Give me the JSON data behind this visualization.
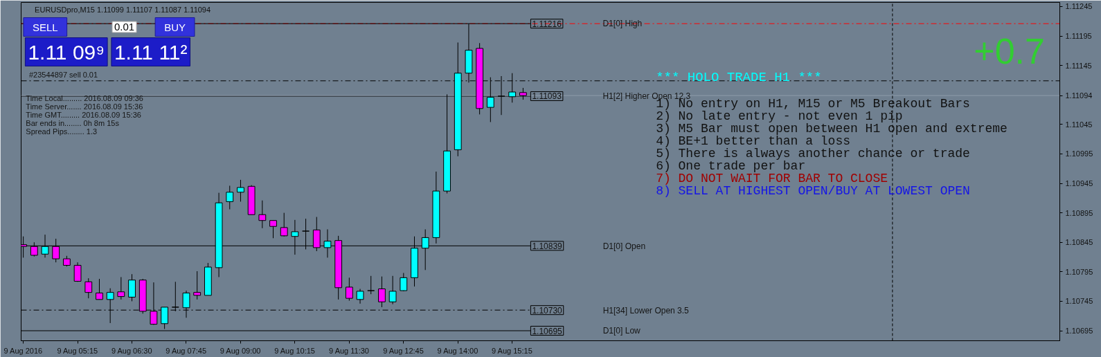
{
  "chart_data": {
    "type": "candlestick",
    "title": "EURUSDpro,M15 1.11099 1.11107 1.11087 1.11094",
    "x": [
      "2016-08-09T04:00",
      "2016-08-09T04:15",
      "2016-08-09T04:30",
      "2016-08-09T04:45",
      "2016-08-09T05:00",
      "2016-08-09T05:15",
      "2016-08-09T05:30",
      "2016-08-09T05:45",
      "2016-08-09T06:00",
      "2016-08-09T06:15",
      "2016-08-09T06:30",
      "2016-08-09T06:45",
      "2016-08-09T07:00",
      "2016-08-09T07:15",
      "2016-08-09T07:30",
      "2016-08-09T07:45",
      "2016-08-09T08:00",
      "2016-08-09T08:15",
      "2016-08-09T08:30",
      "2016-08-09T08:45",
      "2016-08-09T09:00",
      "2016-08-09T09:15",
      "2016-08-09T09:30",
      "2016-08-09T09:45",
      "2016-08-09T10:00",
      "2016-08-09T10:15",
      "2016-08-09T10:30",
      "2016-08-09T10:45",
      "2016-08-09T11:00",
      "2016-08-09T11:15",
      "2016-08-09T11:30",
      "2016-08-09T11:45",
      "2016-08-09T12:00",
      "2016-08-09T12:15",
      "2016-08-09T12:30",
      "2016-08-09T12:45",
      "2016-08-09T13:00",
      "2016-08-09T13:15",
      "2016-08-09T13:30",
      "2016-08-09T13:45",
      "2016-08-09T14:00",
      "2016-08-09T14:15",
      "2016-08-09T14:30",
      "2016-08-09T14:45",
      "2016-08-09T15:00",
      "2016-08-09T15:15",
      "2016-08-09T15:30"
    ],
    "ohlc": [
      [
        1.10841,
        1.10855,
        1.10819,
        1.10838
      ],
      [
        1.10838,
        1.10845,
        1.10821,
        1.10823
      ],
      [
        1.10825,
        1.10858,
        1.10819,
        1.10838
      ],
      [
        1.10838,
        1.10851,
        1.10811,
        1.10817
      ],
      [
        1.10817,
        1.10822,
        1.10804,
        1.10806
      ],
      [
        1.10806,
        1.10811,
        1.10778,
        1.10779
      ],
      [
        1.10778,
        1.10784,
        1.1075,
        1.1076
      ],
      [
        1.10759,
        1.10783,
        1.10748,
        1.10748
      ],
      [
        1.10748,
        1.10767,
        1.10708,
        1.1076
      ],
      [
        1.10761,
        1.10786,
        1.10748,
        1.10753
      ],
      [
        1.10752,
        1.10791,
        1.10745,
        1.10781
      ],
      [
        1.10781,
        1.10783,
        1.10724,
        1.10728
      ],
      [
        1.10728,
        1.10777,
        1.10705,
        1.10706
      ],
      [
        1.10707,
        1.10735,
        1.10698,
        1.10735
      ],
      [
        1.10735,
        1.10778,
        1.10728,
        1.10735
      ],
      [
        1.10734,
        1.10763,
        1.10717,
        1.10759
      ],
      [
        1.1076,
        1.10796,
        1.10748,
        1.10755
      ],
      [
        1.10755,
        1.1081,
        1.10755,
        1.10803
      ],
      [
        1.10802,
        1.10929,
        1.10786,
        1.10912
      ],
      [
        1.10914,
        1.10941,
        1.10901,
        1.1093
      ],
      [
        1.1093,
        1.10951,
        1.10914,
        1.10938
      ],
      [
        1.1094,
        1.10942,
        1.10892,
        1.10892
      ],
      [
        1.10892,
        1.10916,
        1.10869,
        1.10882
      ],
      [
        1.10882,
        1.10882,
        1.10852,
        1.10872
      ],
      [
        1.1087,
        1.10895,
        1.10855,
        1.10856
      ],
      [
        1.10855,
        1.10883,
        1.10824,
        1.10863
      ],
      [
        1.10864,
        1.10885,
        1.10833,
        1.10864
      ],
      [
        1.10866,
        1.10888,
        1.1083,
        1.10836
      ],
      [
        1.10836,
        1.10867,
        1.10819,
        1.10847
      ],
      [
        1.10848,
        1.10856,
        1.10748,
        1.10768
      ],
      [
        1.10769,
        1.10785,
        1.10746,
        1.1075
      ],
      [
        1.10748,
        1.10766,
        1.10741,
        1.10762
      ],
      [
        1.10763,
        1.10788,
        1.10757,
        1.10763
      ],
      [
        1.10766,
        1.10787,
        1.10735,
        1.10744
      ],
      [
        1.10744,
        1.10788,
        1.1074,
        1.10762
      ],
      [
        1.10763,
        1.10793,
        1.10762,
        1.10785
      ],
      [
        1.10785,
        1.10855,
        1.1077,
        1.10835
      ],
      [
        1.10835,
        1.10867,
        1.10798,
        1.10853
      ],
      [
        1.10853,
        1.10965,
        1.10843,
        1.10932
      ],
      [
        1.10932,
        1.11096,
        1.10928,
        1.11
      ],
      [
        1.11002,
        1.11184,
        1.10991,
        1.11132
      ],
      [
        1.11132,
        1.11216,
        1.11116,
        1.11171
      ],
      [
        1.11174,
        1.11183,
        1.11062,
        1.11072
      ],
      [
        1.11074,
        1.11125,
        1.11049,
        1.11091
      ],
      [
        1.11093,
        1.11127,
        1.11061,
        1.11093
      ],
      [
        1.11092,
        1.11132,
        1.11082,
        1.111
      ],
      [
        1.11099,
        1.11107,
        1.11087,
        1.11094
      ]
    ],
    "colors": [
      "#ff00ff",
      "#ff00ff",
      "#00ffff",
      "#ff00ff",
      "#ff00ff",
      "#ff00ff",
      "#ff00ff",
      "#ff00ff",
      "#00ffff",
      "#ff00ff",
      "#00ffff",
      "#ff00ff",
      "#ff00ff",
      "#00ffff",
      "#000000",
      "#00ffff",
      "#ff00ff",
      "#00ffff",
      "#00ffff",
      "#00ffff",
      "#00ffff",
      "#ff00ff",
      "#ff00ff",
      "#ff00ff",
      "#ff00ff",
      "#00ffff",
      "#000000",
      "#ff00ff",
      "#00ffff",
      "#ff00ff",
      "#ff00ff",
      "#00ffff",
      "#000000",
      "#ff00ff",
      "#00ffff",
      "#00ffff",
      "#00ffff",
      "#00ffff",
      "#00ffff",
      "#00ffff",
      "#00ffff",
      "#00ffff",
      "#ff00ff",
      "#00ffff",
      "#000000",
      "#00ffff",
      "#ff00ff"
    ],
    "xlim": [
      "2016-08-09T03:57",
      "2016-08-10T03:51"
    ],
    "xticks": [
      {
        "value": "2016-08-09T04:00",
        "label": "9 Aug 2016"
      },
      {
        "value": "2016-08-09T05:15",
        "label": "9 Aug 05:15"
      },
      {
        "value": "2016-08-09T06:30",
        "label": "9 Aug 06:30"
      },
      {
        "value": "2016-08-09T07:45",
        "label": "9 Aug 07:45"
      },
      {
        "value": "2016-08-09T09:00",
        "label": "9 Aug 09:00"
      },
      {
        "value": "2016-08-09T10:15",
        "label": "9 Aug 10:15"
      },
      {
        "value": "2016-08-09T11:30",
        "label": "9 Aug 11:30"
      },
      {
        "value": "2016-08-09T12:45",
        "label": "9 Aug 12:45"
      },
      {
        "value": "2016-08-09T14:00",
        "label": "9 Aug 14:00"
      },
      {
        "value": "2016-08-09T15:15",
        "label": "9 Aug 15:15"
      }
    ],
    "ylim": [
      1.10678,
      1.11252
    ],
    "yticks": [
      1.10695,
      1.10745,
      1.10795,
      1.10845,
      1.10895,
      1.10945,
      1.10995,
      1.11045,
      1.11094,
      1.11145,
      1.11195,
      1.11245
    ],
    "ref_lines": [
      {
        "axis": "y",
        "value": 1.11216,
        "color": "#ff0000",
        "line_style": "dashdot"
      },
      {
        "axis": "y",
        "value": 1.11216,
        "label": "1.11216",
        "color": "#000000",
        "line_style": "solid"
      },
      {
        "axis": "y",
        "value": 1.11119,
        "color": "#000000",
        "line_style": "dashdot"
      },
      {
        "axis": "y",
        "value": 1.11093,
        "label": "1.11093",
        "color": "#000000",
        "line_style": "solid"
      },
      {
        "axis": "y",
        "value": 1.11094,
        "color": "#8f9cab",
        "line_style": "solid"
      },
      {
        "axis": "y",
        "value": 1.10839,
        "label": "1.10839",
        "color": "#000000",
        "line_style": "solid"
      },
      {
        "axis": "y",
        "value": 1.1073,
        "label": "1.10730",
        "color": "#000000",
        "line_style": "dashdot"
      },
      {
        "axis": "y",
        "value": 1.10695,
        "label": "1.10695",
        "color": "#000000",
        "line_style": "solid"
      },
      {
        "axis": "x",
        "value": "2016-08-10T00:00",
        "color": "#000000",
        "line_style": "dashed"
      }
    ],
    "annotations": [
      "SELL",
      "0.01",
      "BUY",
      "1.11 09⁹",
      "1.11 11²",
      "Time Local......... 2016.08.09 09:36",
      "Time Server....... 2016.08.09 15:36",
      "Time GMT......... 2016.08.09 15:36",
      "Bar ends in........ 0h 8m 15s",
      "Spread Pips........ 1.3",
      "*** HOLO TRADE H1 ***",
      "1) No entry on H1, M15 or M5 Breakout Bars",
      "2) No late entry - not even 1 pip",
      "3) M5 Bar must open between H1 open and extreme",
      "4) BE+1 better than a loss",
      "5) There is always another chance or trade",
      "6) One trade per bar",
      "7) DO NOT WAIT FOR BAR TO CLOSE",
      "8) SELL AT HIGHEST OPEN/BUY AT LOWEST OPEN",
      "+0.7",
      "D1[0] Open",
      "H1[34] Lower Open 3.5",
      "D1[0] Low",
      {
        "text": "#23544897 sell 0.01",
        "x": "2016-08-09T04:08",
        "y": 1.11119
      },
      {
        "text": "D1[0] High",
        "x": "2016-08-09T17:20",
        "y": 1.11216
      },
      {
        "text": "H1[2] Higher Open 12.3",
        "x": "2016-08-09T17:20",
        "y": 1.11093
      }
    ]
  }
}
